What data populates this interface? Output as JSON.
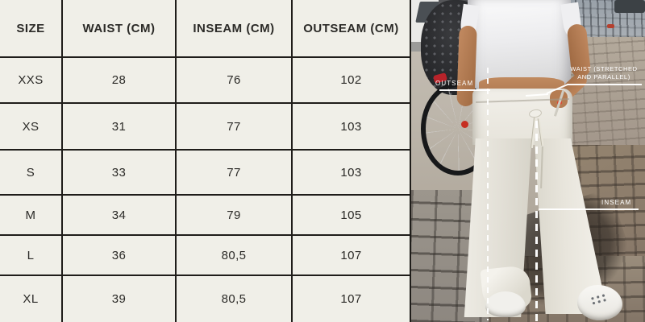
{
  "table": {
    "headers": [
      "SIZE",
      "WAIST (CM)",
      "INSEAM (CM)",
      "OUTSEAM (CM)"
    ],
    "rows": [
      [
        "XXS",
        "28",
        "76",
        "102"
      ],
      [
        "XS",
        "31",
        "77",
        "103"
      ],
      [
        "S",
        "33",
        "77",
        "103"
      ],
      [
        "M",
        "34",
        "79",
        "105"
      ],
      [
        "L",
        "36",
        "80,5",
        "107"
      ],
      [
        "XL",
        "39",
        "80,5",
        "107"
      ]
    ]
  },
  "photo_annotations": {
    "outseam": "OUTSEAM",
    "waist_line1": "WAIST (STRETCHED",
    "waist_line2": "AND PARALLEL)",
    "inseam": "INSEAM"
  },
  "colors": {
    "table_background": "#F0EFE8",
    "table_grid_line": "#1F1D1A",
    "table_text": "#2B2A27",
    "annotation_white": "#FFFFFF",
    "nail_red": "#E2402C"
  }
}
